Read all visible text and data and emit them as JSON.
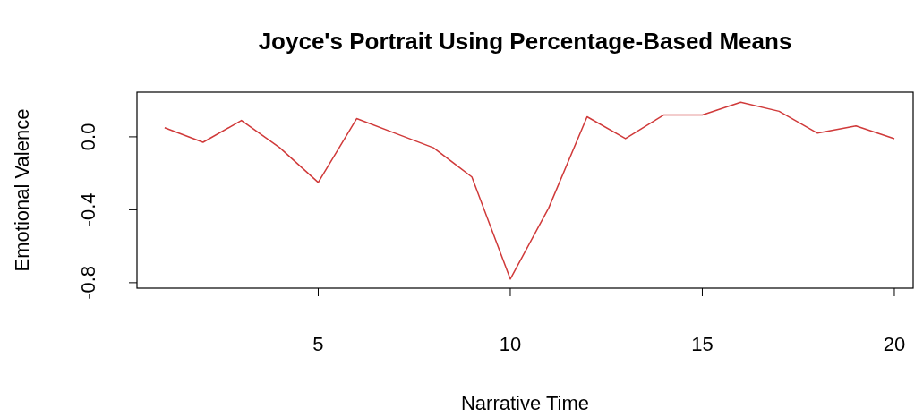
{
  "chart_data": {
    "type": "line",
    "title": "Joyce's Portrait Using Percentage-Based Means",
    "xlabel": "Narrative Time",
    "ylabel": "Emotional Valence",
    "x": [
      1,
      2,
      3,
      4,
      5,
      6,
      7,
      8,
      9,
      10,
      11,
      12,
      13,
      14,
      15,
      16,
      17,
      18,
      19,
      20
    ],
    "series": [
      {
        "color": "#d03a3a",
        "values": [
          0.05,
          -0.03,
          0.09,
          -0.06,
          -0.25,
          0.1,
          0.02,
          -0.06,
          -0.22,
          -0.78,
          -0.39,
          0.11,
          -0.01,
          0.12,
          0.12,
          0.19,
          0.14,
          0.02,
          0.06,
          -0.01
        ]
      }
    ],
    "xlim": [
      0.28,
      20.49
    ],
    "ylim": [
      -0.83,
      0.245
    ],
    "xticks": [
      5,
      10,
      15,
      20
    ],
    "yticks": [
      {
        "value": -0.8,
        "label": "-0.8"
      },
      {
        "value": -0.4,
        "label": "-0.4"
      },
      {
        "value": 0,
        "label": "0.0"
      }
    ],
    "marker": "none",
    "line_style": "solid"
  }
}
